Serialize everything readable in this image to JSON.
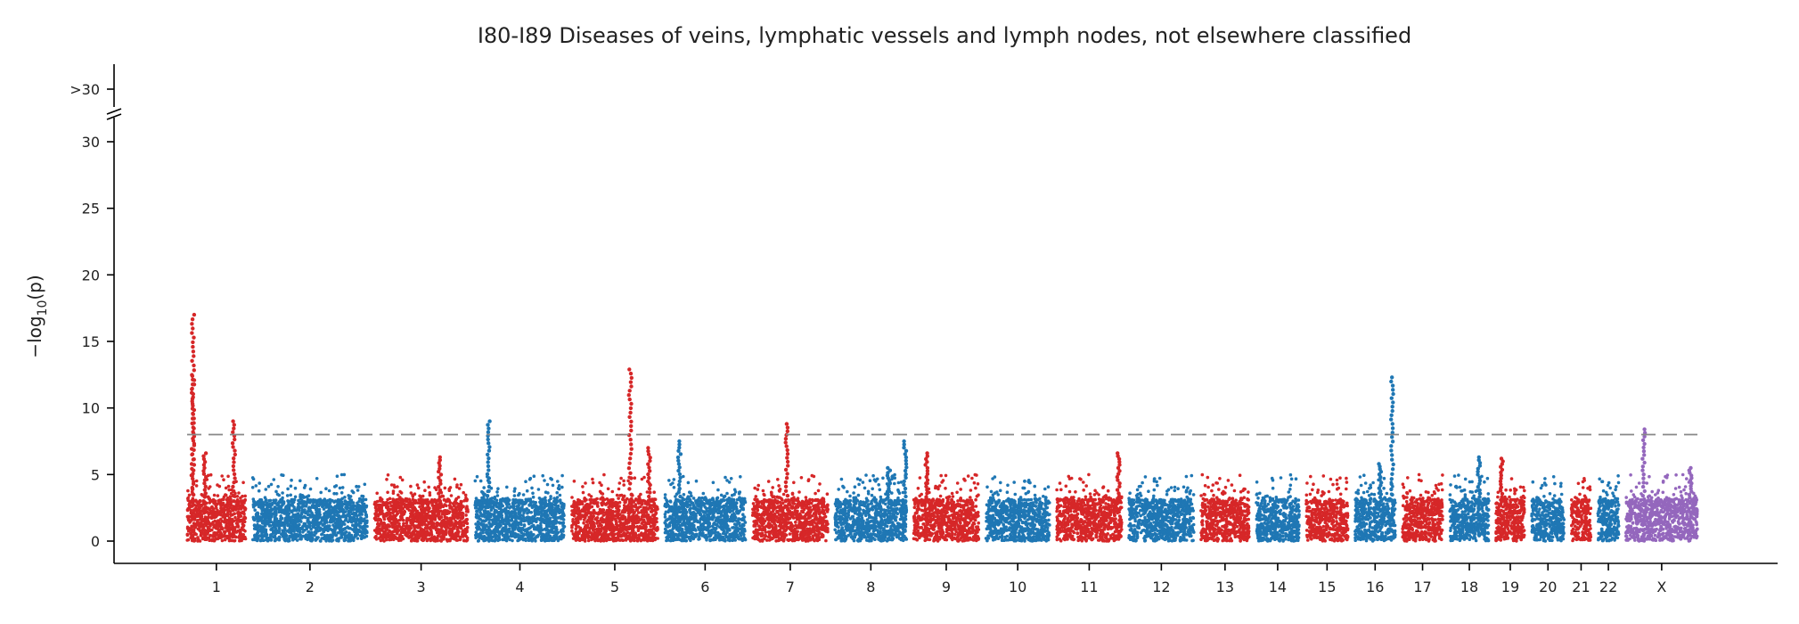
{
  "chart_data": {
    "type": "scatter",
    "title": "I80-I89 Diseases of veins, lymphatic vessels and lymph nodes, not elsewhere classified",
    "xlabel": "",
    "ylabel": "−log",
    "ylabel_subscript": "10",
    "ylabel_suffix": "(p)",
    "ylim": [
      0,
      30
    ],
    "yticks": [
      0,
      5,
      10,
      15,
      20,
      25,
      30
    ],
    "ytick_break_label": ">30",
    "threshold": 8,
    "grid": false,
    "colors": {
      "odd": "#d62728",
      "even": "#1f77b4",
      "x": "#9467bd",
      "threshold": "#888888",
      "axis": "#000000"
    },
    "chromosomes": [
      {
        "name": "1",
        "span": 45
      },
      {
        "name": "2",
        "span": 88
      },
      {
        "name": "3",
        "span": 72
      },
      {
        "name": "4",
        "span": 69
      },
      {
        "name": "5",
        "span": 66
      },
      {
        "name": "6",
        "span": 62
      },
      {
        "name": "7",
        "span": 58
      },
      {
        "name": "8",
        "span": 55
      },
      {
        "name": "9",
        "span": 50
      },
      {
        "name": "10",
        "span": 49
      },
      {
        "name": "11",
        "span": 50
      },
      {
        "name": "12",
        "span": 50
      },
      {
        "name": "13",
        "span": 37
      },
      {
        "name": "14",
        "span": 33
      },
      {
        "name": "15",
        "span": 32
      },
      {
        "name": "16",
        "span": 31
      },
      {
        "name": "17",
        "span": 31
      },
      {
        "name": "18",
        "span": 30
      },
      {
        "name": "19",
        "span": 22
      },
      {
        "name": "20",
        "span": 25
      },
      {
        "name": "21",
        "span": 15
      },
      {
        "name": "22",
        "span": 16
      },
      {
        "name": "X",
        "span": 55
      }
    ],
    "peaks": [
      {
        "chrom": "1",
        "pos": 0.1,
        "top": 17.0
      },
      {
        "chrom": "1",
        "pos": 0.1,
        "top": 12.4
      },
      {
        "chrom": "1",
        "pos": 0.3,
        "top": 6.6
      },
      {
        "chrom": "1",
        "pos": 0.8,
        "top": 9.0
      },
      {
        "chrom": "3",
        "pos": 0.7,
        "top": 6.3
      },
      {
        "chrom": "4",
        "pos": 0.15,
        "top": 9.0
      },
      {
        "chrom": "5",
        "pos": 0.68,
        "top": 12.9
      },
      {
        "chrom": "5",
        "pos": 0.9,
        "top": 7.0
      },
      {
        "chrom": "6",
        "pos": 0.18,
        "top": 7.5
      },
      {
        "chrom": "7",
        "pos": 0.45,
        "top": 8.8
      },
      {
        "chrom": "8",
        "pos": 0.75,
        "top": 5.5
      },
      {
        "chrom": "8",
        "pos": 0.98,
        "top": 7.5
      },
      {
        "chrom": "9",
        "pos": 0.2,
        "top": 6.6
      },
      {
        "chrom": "11",
        "pos": 0.95,
        "top": 6.6
      },
      {
        "chrom": "16",
        "pos": 0.62,
        "top": 5.8
      },
      {
        "chrom": "16",
        "pos": 0.92,
        "top": 12.3
      },
      {
        "chrom": "18",
        "pos": 0.75,
        "top": 6.3
      },
      {
        "chrom": "19",
        "pos": 0.2,
        "top": 6.2
      },
      {
        "chrom": "X",
        "pos": 0.25,
        "top": 8.4
      },
      {
        "chrom": "X",
        "pos": 0.9,
        "top": 5.5
      }
    ]
  }
}
